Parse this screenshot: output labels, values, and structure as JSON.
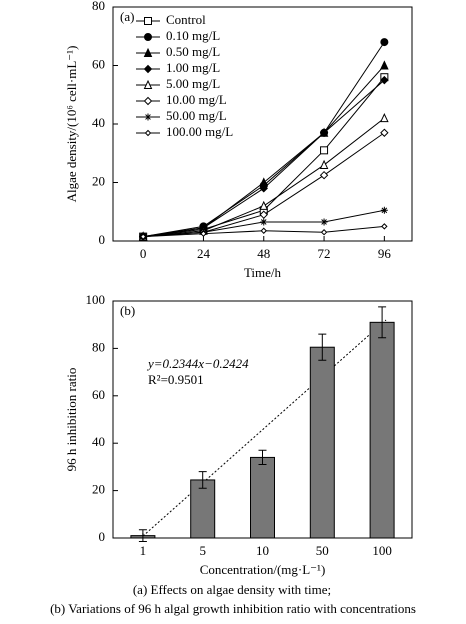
{
  "chart_data": [
    {
      "type": "line",
      "annotation": "(a)",
      "x_label": "Time/h",
      "y_label": "Algae density/(10⁶ cell·mL⁻¹)",
      "x": [
        0,
        24,
        48,
        72,
        96
      ],
      "xlim": [
        -12,
        107
      ],
      "xticks": [
        0,
        24,
        48,
        72,
        96
      ],
      "ylim": [
        0,
        80
      ],
      "yticks": [
        0,
        20,
        40,
        60,
        80
      ],
      "legend": "upper left",
      "series": [
        {
          "name": "Control",
          "color": "#000000",
          "marker": "square-open",
          "values": [
            1.5,
            4,
            10.5,
            31,
            56
          ]
        },
        {
          "name": "0.10 mg/L",
          "color": "#000000",
          "marker": "circle",
          "values": [
            1.5,
            5,
            19,
            37,
            68
          ]
        },
        {
          "name": "0.50 mg/L",
          "color": "#000000",
          "marker": "triangle",
          "values": [
            1.5,
            4.5,
            20,
            37,
            60
          ]
        },
        {
          "name": "1.00 mg/L",
          "color": "#000000",
          "marker": "diamond",
          "values": [
            1.5,
            4.5,
            18,
            37,
            55
          ]
        },
        {
          "name": "5.00 mg/L",
          "color": "#000000",
          "marker": "triangle-open",
          "values": [
            1.5,
            3.5,
            12,
            26,
            42
          ]
        },
        {
          "name": "10.00 mg/L",
          "color": "#000000",
          "marker": "diamond-open",
          "values": [
            1.5,
            3,
            9,
            22.5,
            37
          ]
        },
        {
          "name": "50.00 mg/L",
          "color": "#000000",
          "marker": "star",
          "values": [
            1.5,
            3,
            6.5,
            6.5,
            10.5
          ]
        },
        {
          "name": "100.00 mg/L",
          "color": "#000000",
          "marker": "diamond-open-small",
          "values": [
            1.5,
            2.5,
            3.5,
            3,
            5
          ]
        }
      ]
    },
    {
      "type": "bar",
      "annotation": "(b)",
      "x_label": "Concentration/(mg·L⁻¹)",
      "y_label": "96 h inhibition ratio",
      "categories": [
        "1",
        "5",
        "10",
        "50",
        "100"
      ],
      "values": [
        1,
        24.5,
        34,
        80.5,
        91
      ],
      "errors": [
        2.5,
        3.5,
        3,
        5.5,
        6.5
      ],
      "color": "#777777",
      "ylim": [
        0,
        100
      ],
      "yticks": [
        0,
        20,
        40,
        60,
        80,
        100
      ],
      "fit_equation": "y=0.2344x−0.2424",
      "fit_r2": "R²=0.9501"
    }
  ],
  "captions": [
    "(a)  Effects on algae density with time;",
    "(b) Variations of 96 h algal growth inhibition ratio with concentrations"
  ]
}
